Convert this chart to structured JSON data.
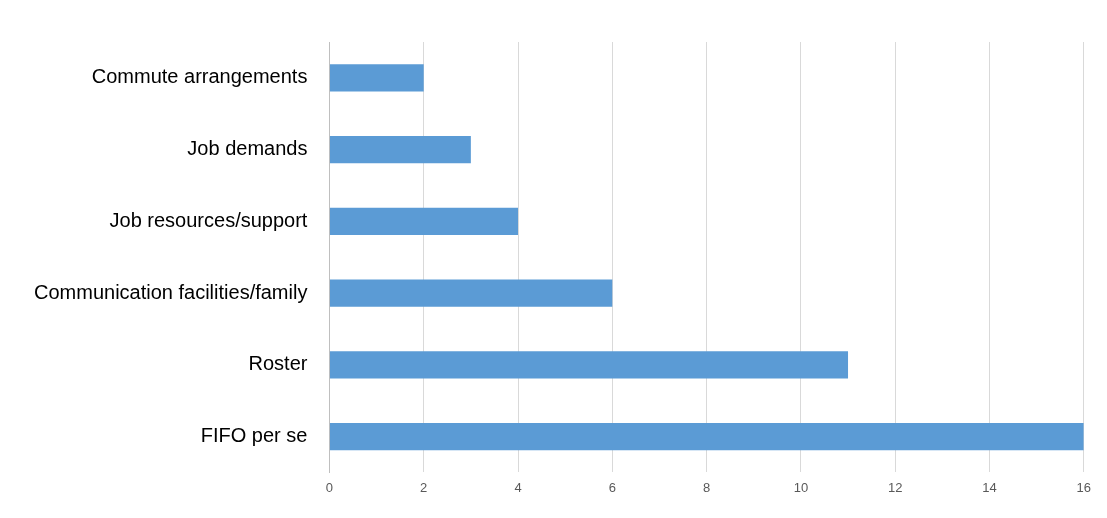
{
  "chart_data": {
    "type": "bar",
    "orientation": "horizontal",
    "categories": [
      "Commute arrangements",
      "Job demands",
      "Job resources/support",
      "Communication facilities/family",
      "Roster",
      "FIFO per se"
    ],
    "values": [
      2,
      3,
      4,
      6,
      11,
      16
    ],
    "color": "#5b9bd5",
    "xlim": [
      0,
      16
    ],
    "xticks": [
      0,
      2,
      4,
      6,
      8,
      10,
      12,
      14,
      16
    ],
    "grid": "x",
    "legend": false
  }
}
